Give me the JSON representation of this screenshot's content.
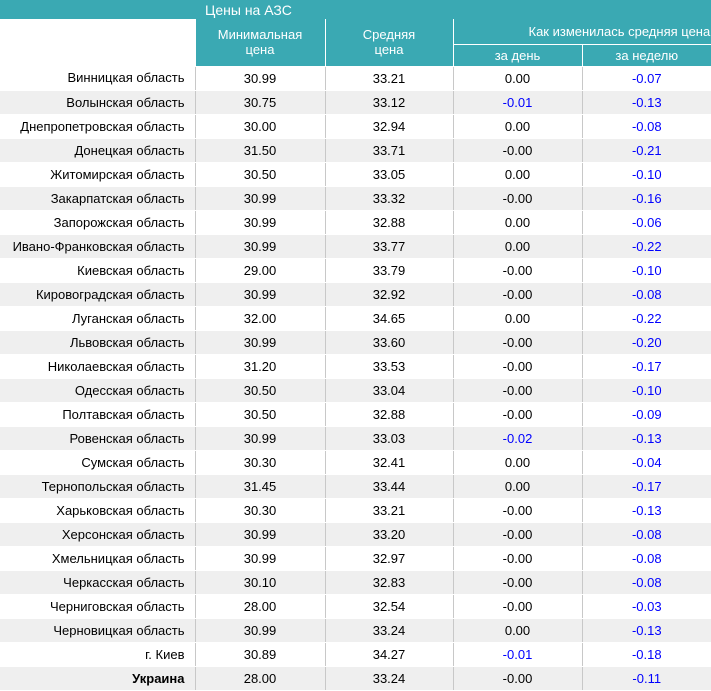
{
  "header": {
    "title": "Цены на АЗС"
  },
  "table": {
    "columns": {
      "min": "Минимальная цена",
      "avg": "Средняя цена",
      "change": "Как изменилась средняя цена",
      "day": "за день",
      "week": "за неделю"
    },
    "negative_color": "#0000ff",
    "rows": [
      [
        "Винницкая область",
        "30.99",
        "33.21",
        "0.00",
        "-0.07"
      ],
      [
        "Волынская область",
        "30.75",
        "33.12",
        "-0.01",
        "-0.13"
      ],
      [
        "Днепропетровская область",
        "30.00",
        "32.94",
        "0.00",
        "-0.08"
      ],
      [
        "Донецкая область",
        "31.50",
        "33.71",
        "-0.00",
        "-0.21"
      ],
      [
        "Житомирская область",
        "30.50",
        "33.05",
        "0.00",
        "-0.10"
      ],
      [
        "Закарпатская область",
        "30.99",
        "33.32",
        "-0.00",
        "-0.16"
      ],
      [
        "Запорожская область",
        "30.99",
        "32.88",
        "0.00",
        "-0.06"
      ],
      [
        "Ивано-Франковская область",
        "30.99",
        "33.77",
        "0.00",
        "-0.22"
      ],
      [
        "Киевская область",
        "29.00",
        "33.79",
        "-0.00",
        "-0.10"
      ],
      [
        "Кировоградская область",
        "30.99",
        "32.92",
        "-0.00",
        "-0.08"
      ],
      [
        "Луганская область",
        "32.00",
        "34.65",
        "0.00",
        "-0.22"
      ],
      [
        "Львовская область",
        "30.99",
        "33.60",
        "-0.00",
        "-0.20"
      ],
      [
        "Николаевская область",
        "31.20",
        "33.53",
        "-0.00",
        "-0.17"
      ],
      [
        "Одесская область",
        "30.50",
        "33.04",
        "-0.00",
        "-0.10"
      ],
      [
        "Полтавская область",
        "30.50",
        "32.88",
        "-0.00",
        "-0.09"
      ],
      [
        "Ровенская область",
        "30.99",
        "33.03",
        "-0.02",
        "-0.13"
      ],
      [
        "Сумская область",
        "30.30",
        "32.41",
        "0.00",
        "-0.04"
      ],
      [
        "Тернопольская область",
        "31.45",
        "33.44",
        "0.00",
        "-0.17"
      ],
      [
        "Харьковская область",
        "30.30",
        "33.21",
        "-0.00",
        "-0.13"
      ],
      [
        "Херсонская область",
        "30.99",
        "33.20",
        "-0.00",
        "-0.08"
      ],
      [
        "Хмельницкая область",
        "30.99",
        "32.97",
        "-0.00",
        "-0.08"
      ],
      [
        "Черкасская область",
        "30.10",
        "32.83",
        "-0.00",
        "-0.08"
      ],
      [
        "Черниговская область",
        "28.00",
        "32.54",
        "-0.00",
        "-0.03"
      ],
      [
        "Черновицкая область",
        "30.99",
        "33.24",
        "0.00",
        "-0.13"
      ],
      [
        "г. Киев",
        "30.89",
        "34.27",
        "-0.01",
        "-0.18"
      ],
      [
        "Украина",
        "28.00",
        "33.24",
        "-0.00",
        "-0.11"
      ]
    ]
  }
}
